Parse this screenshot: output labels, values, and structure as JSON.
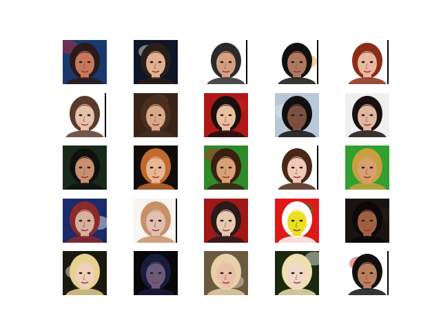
{
  "figure": {
    "rows": 5,
    "cols": 5,
    "tiles": [
      {
        "bg": "#1a3a6e",
        "skin": "#c8785a",
        "hair": "#2a1a1a",
        "accent": "#d02a3a",
        "right_bar": false
      },
      {
        "bg": "#0e1628",
        "skin": "#e0b090",
        "hair": "#2a1e18",
        "accent": "#ffffff",
        "right_bar": false
      },
      {
        "bg": "#ffffff",
        "skin": "#d4a080",
        "hair": "#2a2a2a",
        "accent": "#1a1a1a",
        "right_bar": true
      },
      {
        "bg": "#ffffff",
        "skin": "#b07860",
        "hair": "#101010",
        "accent": "#e0a020",
        "right_bar": true
      },
      {
        "bg": "#ffffff",
        "skin": "#e8b8a0",
        "hair": "#8a2e18",
        "accent": "#ffffff",
        "right_bar": true
      },
      {
        "bg": "#ffffff",
        "skin": "#e6c2ac",
        "hair": "#5a3a2a",
        "accent": "#ffffff",
        "right_bar": true
      },
      {
        "bg": "#3a2418",
        "skin": "#d8a888",
        "hair": "#4a2e1e",
        "accent": "#6a4a30",
        "right_bar": false
      },
      {
        "bg": "#b01818",
        "skin": "#e8c0a0",
        "hair": "#1a1010",
        "accent": "#d02020",
        "right_bar": false
      },
      {
        "bg": "#b8c8d8",
        "skin": "#7a5040",
        "hair": "#101010",
        "accent": "#e8e8e8",
        "right_bar": false
      },
      {
        "bg": "#f0f0f0",
        "skin": "#e0b8a0",
        "hair": "#1a1010",
        "accent": "#ffffff",
        "right_bar": false
      },
      {
        "bg": "#1a2a1a",
        "skin": "#c89070",
        "hair": "#101010",
        "accent": "#2a3a4a",
        "right_bar": false
      },
      {
        "bg": "#120c08",
        "skin": "#e8b890",
        "hair": "#c06a30",
        "accent": "#1a1010",
        "right_bar": false
      },
      {
        "bg": "#2e8a2a",
        "skin": "#d8a078",
        "hair": "#3a2010",
        "accent": "#c02a2a",
        "right_bar": false
      },
      {
        "bg": "#ffffff",
        "skin": "#f0c8b8",
        "hair": "#4a2818",
        "accent": "#ffffff",
        "right_bar": true
      },
      {
        "bg": "#30a030",
        "skin": "#d8a070",
        "hair": "#c8a040",
        "accent": "#e02020",
        "right_bar": false
      },
      {
        "bg": "#1a2a6a",
        "skin": "#d8b0a0",
        "hair": "#8a2a2a",
        "accent": "#ffffff",
        "right_bar": false
      },
      {
        "bg": "#f8f4f0",
        "skin": "#e0c0b0",
        "hair": "#c89068",
        "accent": "#ffffff",
        "right_bar": true
      },
      {
        "bg": "#a01818",
        "skin": "#e8c8b0",
        "hair": "#2a1a1a",
        "accent": "#2a3a6a",
        "right_bar": false
      },
      {
        "bg": "#e01818",
        "skin": "#e8e020",
        "hair": "#ffffff",
        "accent": "#2a8a2a",
        "right_bar": false
      },
      {
        "bg": "#1a1410",
        "skin": "#a06040",
        "hair": "#0a0808",
        "accent": "#2a1e18",
        "right_bar": false
      },
      {
        "bg": "#1a1a10",
        "skin": "#f0d0b8",
        "hair": "#e8d090",
        "accent": "#ffffff",
        "right_bar": false
      },
      {
        "bg": "#080808",
        "skin": "#6a5a7a",
        "hair": "#1a1a3a",
        "accent": "#b8b8d0",
        "right_bar": false
      },
      {
        "bg": "#6a5a40",
        "skin": "#e8c0a8",
        "hair": "#e8d0a8",
        "accent": "#f0e0c8",
        "right_bar": false
      },
      {
        "bg": "#1a2a10",
        "skin": "#f0d8c8",
        "hair": "#f0e0b0",
        "accent": "#ffffff",
        "right_bar": false
      },
      {
        "bg": "#ffffff",
        "skin": "#b88060",
        "hair": "#101010",
        "accent": "#d02020",
        "right_bar": true
      }
    ]
  }
}
